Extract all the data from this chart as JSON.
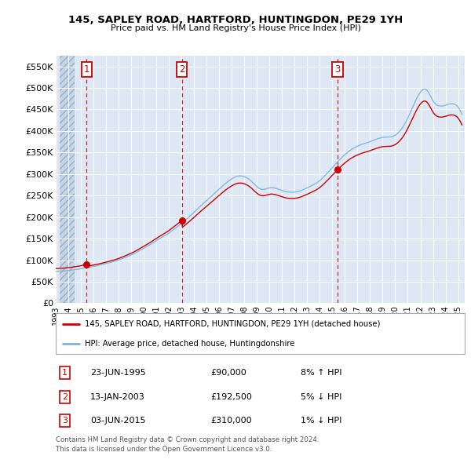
{
  "title": "145, SAPLEY ROAD, HARTFORD, HUNTINGDON, PE29 1YH",
  "subtitle": "Price paid vs. HM Land Registry's House Price Index (HPI)",
  "ylim": [
    0,
    575000
  ],
  "yticks": [
    0,
    50000,
    100000,
    150000,
    200000,
    250000,
    300000,
    350000,
    400000,
    450000,
    500000,
    550000
  ],
  "ytick_labels": [
    "£0",
    "£50K",
    "£100K",
    "£150K",
    "£200K",
    "£250K",
    "£300K",
    "£350K",
    "£400K",
    "£450K",
    "£500K",
    "£550K"
  ],
  "hpi_color": "#7ab4d8",
  "price_color": "#cc0000",
  "dashed_line_color": "#cc0000",
  "background_color": "#dde8f4",
  "legend_label_price": "145, SAPLEY ROAD, HARTFORD, HUNTINGDON, PE29 1YH (detached house)",
  "legend_label_hpi": "HPI: Average price, detached house, Huntingdonshire",
  "transactions": [
    {
      "label": "1",
      "date": "23-JUN-1995",
      "price": 90000,
      "hpi_pct": "8%",
      "direction": "↑",
      "x_year": 1995.47
    },
    {
      "label": "2",
      "date": "13-JAN-2003",
      "price": 192500,
      "hpi_pct": "5%",
      "direction": "↓",
      "x_year": 2003.04
    },
    {
      "label": "3",
      "date": "03-JUN-2015",
      "price": 310000,
      "hpi_pct": "1%",
      "direction": "↓",
      "x_year": 2015.42
    }
  ],
  "footer_line1": "Contains HM Land Registry data © Crown copyright and database right 2024.",
  "footer_line2": "This data is licensed under the Open Government Licence v3.0.",
  "xlim_start": 1993.3,
  "xlim_end": 2025.5,
  "hatch_end": 1994.5
}
